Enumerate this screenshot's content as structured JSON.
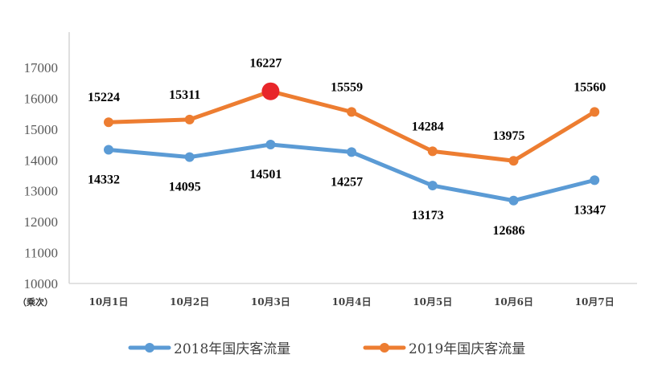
{
  "chart_data": {
    "type": "line",
    "title": "",
    "ylabel": "（乘次）",
    "xlabel": "",
    "ylim": [
      10000,
      17000
    ],
    "yticks": [
      "10000",
      "11000",
      "12000",
      "13000",
      "14000",
      "15000",
      "16000",
      "17000"
    ],
    "categories": [
      "10月1日",
      "10月2日",
      "10月3日",
      "10月4日",
      "10月5日",
      "10月6日",
      "10月7日"
    ],
    "series": [
      {
        "name": "2018年国庆客流量",
        "color": "#5b9bd5",
        "values": [
          14332,
          14095,
          14501,
          14257,
          13173,
          12686,
          13347
        ],
        "label_pos": "below"
      },
      {
        "name": "2019年国庆客流量",
        "color": "#ed7d31",
        "values": [
          15224,
          15311,
          16227,
          15559,
          14284,
          13975,
          15560
        ],
        "label_pos": "above",
        "highlight_index": 2,
        "highlight_color": "#e8262a"
      }
    ],
    "grid": false,
    "legend_position": "bottom"
  }
}
